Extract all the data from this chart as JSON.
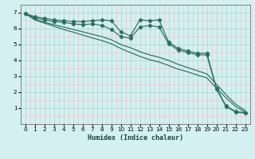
{
  "xlabel": "Humidex (Indice chaleur)",
  "ylabel": "",
  "bg_color": "#d4f0f0",
  "plot_bg_color": "#d4f0f0",
  "grid_major_color": "#b0d8d8",
  "grid_minor_color": "#e8c8c8",
  "line_color": "#2a7060",
  "xlim": [
    -0.5,
    23.5
  ],
  "ylim": [
    0.0,
    7.5
  ],
  "xticks": [
    0,
    1,
    2,
    3,
    4,
    5,
    6,
    7,
    8,
    9,
    10,
    11,
    12,
    13,
    14,
    15,
    16,
    17,
    18,
    19,
    20,
    21,
    22,
    23
  ],
  "yticks": [
    1,
    2,
    3,
    4,
    5,
    6,
    7
  ],
  "lines": [
    {
      "x": [
        0,
        1,
        2,
        3,
        4,
        5,
        6,
        7,
        8,
        9,
        10,
        11,
        12,
        13,
        14,
        15,
        16,
        17,
        18,
        19,
        20,
        21,
        22,
        23
      ],
      "y": [
        6.95,
        6.75,
        6.65,
        6.55,
        6.5,
        6.45,
        6.45,
        6.5,
        6.55,
        6.5,
        5.8,
        5.55,
        6.55,
        6.5,
        6.55,
        5.15,
        4.75,
        4.6,
        4.45,
        4.45,
        2.25,
        1.15,
        0.78,
        0.72
      ],
      "marker": true
    },
    {
      "x": [
        0,
        1,
        2,
        3,
        4,
        5,
        6,
        7,
        8,
        9,
        10,
        11,
        12,
        13,
        14,
        15,
        16,
        17,
        18,
        19,
        20,
        21,
        22,
        23
      ],
      "y": [
        6.95,
        6.7,
        6.55,
        6.45,
        6.4,
        6.3,
        6.25,
        6.3,
        6.2,
        5.95,
        5.5,
        5.4,
        6.1,
        6.2,
        6.1,
        5.05,
        4.65,
        4.5,
        4.35,
        4.35,
        2.2,
        1.1,
        0.75,
        0.68
      ],
      "marker": true
    },
    {
      "x": [
        0,
        1,
        2,
        3,
        4,
        5,
        6,
        7,
        8,
        9,
        10,
        11,
        12,
        13,
        14,
        15,
        16,
        17,
        18,
        19,
        20,
        21,
        22,
        23
      ],
      "y": [
        6.95,
        6.6,
        6.4,
        6.25,
        6.1,
        5.95,
        5.8,
        5.65,
        5.5,
        5.3,
        5.0,
        4.8,
        4.55,
        4.35,
        4.2,
        4.0,
        3.75,
        3.55,
        3.35,
        3.15,
        2.5,
        1.85,
        1.25,
        0.85
      ],
      "marker": false
    },
    {
      "x": [
        0,
        1,
        2,
        3,
        4,
        5,
        6,
        7,
        8,
        9,
        10,
        11,
        12,
        13,
        14,
        15,
        16,
        17,
        18,
        19,
        20,
        21,
        22,
        23
      ],
      "y": [
        6.95,
        6.55,
        6.35,
        6.15,
        5.95,
        5.78,
        5.6,
        5.42,
        5.25,
        5.05,
        4.75,
        4.5,
        4.25,
        4.05,
        3.9,
        3.68,
        3.45,
        3.28,
        3.08,
        2.9,
        2.25,
        1.65,
        1.1,
        0.75
      ],
      "marker": false
    }
  ]
}
